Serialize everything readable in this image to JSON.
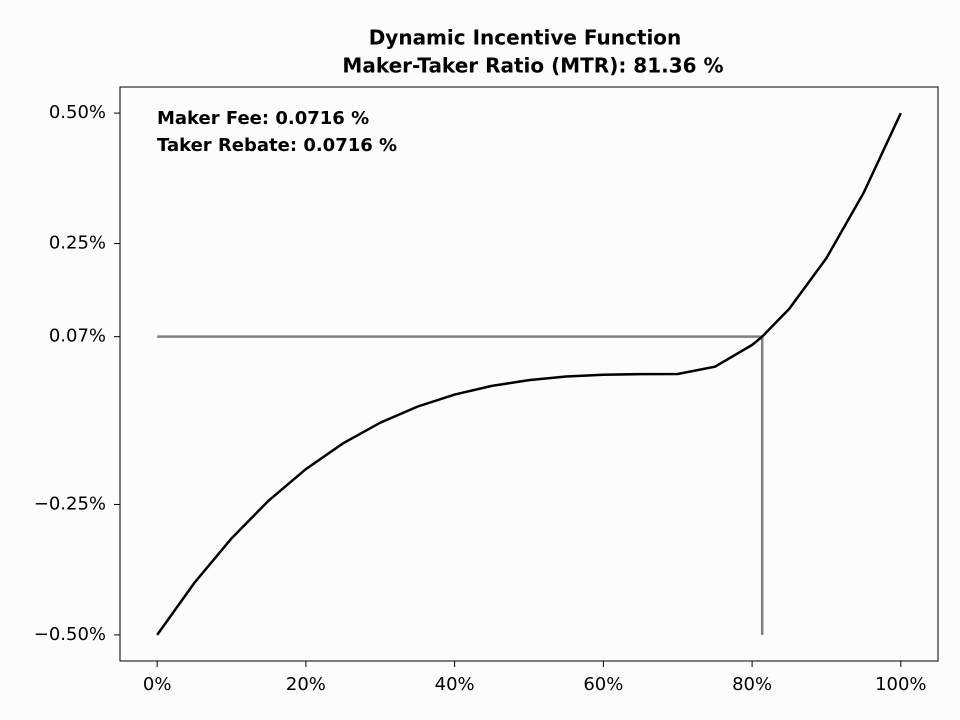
{
  "chart_data": {
    "type": "line",
    "title": "Dynamic Incentive Function",
    "subtitle": "Maker-Taker Ratio (MTR): 81.36 %",
    "annotations": [
      "Maker Fee: 0.0716 %",
      "Taker Rebate: 0.0716 %"
    ],
    "x": [
      0,
      5,
      10,
      15,
      20,
      25,
      30,
      35,
      40,
      45,
      50,
      55,
      60,
      65,
      70,
      75,
      80,
      81.36,
      85,
      90,
      95,
      100
    ],
    "series": [
      {
        "color": "#000000",
        "values": [
          -0.5,
          -0.4003,
          -0.3149,
          -0.2425,
          -0.1822,
          -0.1328,
          -0.0933,
          -0.0625,
          -0.0394,
          -0.0228,
          -0.0117,
          -0.0049,
          -0.0015,
          -0.0002,
          0,
          0.0139,
          0.0556,
          0.0716,
          0.125,
          0.2222,
          0.3472,
          0.5
        ]
      }
    ],
    "reference_lines": [
      {
        "color": "#808080",
        "x": [
          0,
          81.36
        ],
        "y": [
          0.0716,
          0.0716
        ]
      },
      {
        "color": "#808080",
        "x": [
          81.36,
          81.36
        ],
        "y": [
          0.0716,
          -0.5
        ]
      }
    ],
    "xlim": [
      -5,
      105
    ],
    "ylim": [
      -0.55,
      0.55
    ],
    "xticks": [
      {
        "value": 0,
        "label": "0%"
      },
      {
        "value": 20,
        "label": "20%"
      },
      {
        "value": 40,
        "label": "40%"
      },
      {
        "value": 60,
        "label": "60%"
      },
      {
        "value": 80,
        "label": "80%"
      },
      {
        "value": 100,
        "label": "100%"
      }
    ],
    "yticks": [
      {
        "value": -0.5,
        "label": "−0.50%"
      },
      {
        "value": -0.25,
        "label": "−0.25%"
      },
      {
        "value": 0.0716,
        "label": "0.07%"
      },
      {
        "value": 0.25,
        "label": "0.25%"
      },
      {
        "value": 0.5,
        "label": "0.50%"
      }
    ]
  }
}
